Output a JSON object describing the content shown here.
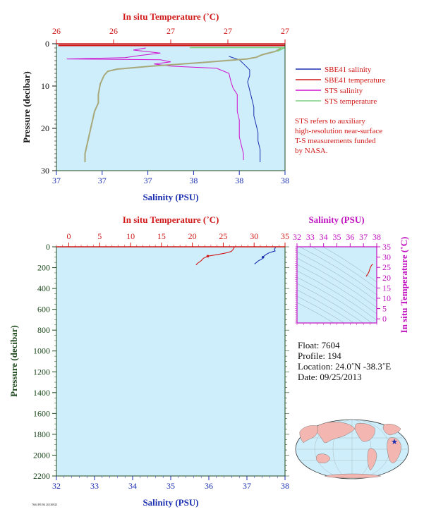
{
  "colors": {
    "plot_bg": "#cdeefa",
    "sbe41_salinity": "#1a2fb0",
    "sbe41_temperature": "#d01818",
    "sts_salinity": "#d010d0",
    "sts_temperature": "#7cd07c",
    "sts_temperature_trace": "#a8a87a",
    "temperature_axis": "#d01818",
    "salinity_axis": "#1a2fb0",
    "pressure_axis": "#1e4a1e",
    "ts_axis": "#c010c0"
  },
  "legend": {
    "items": [
      {
        "label": "SBE41 salinity",
        "color": "#1a2fb0"
      },
      {
        "label": "SBE41 temperature",
        "color": "#d01818"
      },
      {
        "label": "STS salinity",
        "color": "#d010d0"
      },
      {
        "label": "STS temperature",
        "color": "#7cd07c"
      }
    ],
    "note": [
      "STS refers to auxiliary",
      "high-resolution near-surface",
      "T-S measurements funded",
      "by NASA."
    ]
  },
  "float_info": {
    "float": "Float:  7604",
    "profile": "Profile:  194",
    "location": "Location:  24.0˚N  -38.3˚E",
    "date": "Date:  09/25/2013"
  },
  "footer_tiny": "7604 P0194 20130925",
  "chart_data": [
    {
      "type": "line",
      "name": "near-surface profile",
      "top_axis": {
        "label": "In situ Temperature (˚C)",
        "ticks": [
          "26",
          "26",
          "27",
          "27",
          "27"
        ],
        "range": [
          25.9,
          27.1
        ]
      },
      "bottom_axis": {
        "label": "Salinity (PSU)",
        "ticks": [
          "37",
          "37",
          "37",
          "38",
          "38",
          "38"
        ],
        "range": [
          36.95,
          38.05
        ]
      },
      "y_axis": {
        "label": "Pressure (decibar)",
        "ticks": [
          "0",
          "10",
          "20",
          "30"
        ],
        "range": [
          0,
          30
        ],
        "inverted": true
      },
      "series": [
        {
          "name": "SBE41 salinity",
          "axis": "bottom",
          "points": [
            [
              37.78,
              3
            ],
            [
              37.83,
              3.8
            ],
            [
              37.86,
              5.2
            ],
            [
              37.88,
              6.2
            ],
            [
              37.88,
              7.5
            ],
            [
              37.87,
              9
            ],
            [
              37.88,
              11
            ],
            [
              37.89,
              13
            ],
            [
              37.9,
              15
            ],
            [
              37.9,
              17
            ],
            [
              37.91,
              19
            ],
            [
              37.92,
              21
            ],
            [
              37.92,
              23
            ],
            [
              37.93,
              25
            ],
            [
              37.93,
              27
            ],
            [
              37.93,
              28
            ]
          ]
        },
        {
          "name": "STS salinity",
          "axis": "bottom",
          "points": [
            [
              37.38,
              1
            ],
            [
              37.32,
              1.5
            ],
            [
              37.45,
              2.2
            ],
            [
              37.35,
              2.8
            ],
            [
              37.28,
              3.3
            ],
            [
              37.0,
              3.6
            ],
            [
              37.45,
              3.8
            ],
            [
              37.5,
              4.3
            ],
            [
              37.42,
              4.8
            ],
            [
              37.5,
              5.3
            ],
            [
              37.72,
              5.8
            ],
            [
              37.78,
              7
            ],
            [
              37.79,
              9
            ],
            [
              37.8,
              10.5
            ],
            [
              37.82,
              12
            ],
            [
              37.82,
              14
            ],
            [
              37.82,
              16
            ],
            [
              37.83,
              18
            ],
            [
              37.83,
              20
            ],
            [
              37.83,
              22
            ],
            [
              37.84,
              24
            ],
            [
              37.85,
              26
            ],
            [
              37.85,
              27.5
            ]
          ]
        },
        {
          "name": "STS temperature",
          "axis": "top",
          "points": [
            [
              27.08,
              1
            ],
            [
              27.05,
              1.8
            ],
            [
              26.98,
              2.6
            ],
            [
              26.95,
              3.2
            ],
            [
              26.9,
              3.6
            ],
            [
              26.65,
              4.5
            ],
            [
              26.4,
              5.3
            ],
            [
              26.22,
              6.0
            ],
            [
              26.17,
              6.5
            ],
            [
              26.15,
              7.5
            ],
            [
              26.13,
              9.5
            ],
            [
              26.12,
              12
            ],
            [
              26.12,
              14
            ],
            [
              26.1,
              16
            ],
            [
              26.09,
              18
            ],
            [
              26.08,
              20
            ],
            [
              26.07,
              22
            ],
            [
              26.06,
              24
            ],
            [
              26.05,
              26
            ],
            [
              26.05,
              28
            ]
          ]
        },
        {
          "name": "SBE41 temperature",
          "axis": "top",
          "points": [
            [
              25.91,
              0.4
            ],
            [
              27.1,
              0.4
            ]
          ]
        }
      ]
    },
    {
      "type": "line",
      "name": "full profile",
      "top_axis": {
        "label": "In situ Temperature (˚C)",
        "ticks": [
          "0",
          "5",
          "10",
          "15",
          "20",
          "25",
          "30",
          "35"
        ],
        "range": [
          -2,
          35
        ]
      },
      "bottom_axis": {
        "label": "Salinity (PSU)",
        "ticks": [
          "32",
          "33",
          "34",
          "35",
          "36",
          "37",
          "38"
        ],
        "range": [
          32,
          38
        ]
      },
      "y_axis": {
        "label": "Pressure (decibar)",
        "ticks": [
          "0",
          "200",
          "400",
          "600",
          "800",
          "1000",
          "1200",
          "1400",
          "1600",
          "1800",
          "2000",
          "2200"
        ],
        "range": [
          0,
          2200
        ],
        "inverted": true
      },
      "series": [
        {
          "name": "SBE41 temperature",
          "axis": "top",
          "points": [
            [
              26.8,
              5
            ],
            [
              26.6,
              25
            ],
            [
              26.3,
              45
            ],
            [
              25.2,
              62
            ],
            [
              24.0,
              75
            ],
            [
              22.5,
              90
            ],
            [
              21.8,
              110
            ],
            [
              21.4,
              135
            ],
            [
              20.8,
              160
            ],
            [
              20.6,
              175
            ]
          ]
        },
        {
          "name": "SBE41 salinity",
          "axis": "bottom",
          "points": [
            [
              37.75,
              5
            ],
            [
              37.72,
              25
            ],
            [
              37.74,
              40
            ],
            [
              37.6,
              55
            ],
            [
              37.52,
              70
            ],
            [
              37.46,
              85
            ],
            [
              37.42,
              100
            ],
            [
              37.4,
              115
            ],
            [
              37.3,
              135
            ],
            [
              37.25,
              150
            ],
            [
              37.2,
              165
            ]
          ]
        }
      ]
    },
    {
      "type": "scatter",
      "name": "T-S diagram",
      "top_axis": {
        "label": "Salinity (PSU)",
        "ticks": [
          "32",
          "33",
          "34",
          "35",
          "36",
          "37",
          "38"
        ],
        "range": [
          32,
          38
        ]
      },
      "right_axis": {
        "label": "In situ Temperature (˚C)",
        "ticks": [
          "0",
          "5",
          "10",
          "15",
          "20",
          "25",
          "30",
          "35"
        ],
        "range": [
          -2,
          35
        ]
      },
      "series": [
        {
          "name": "SBE41 T-S",
          "points": [
            [
              37.2,
              20.6
            ],
            [
              37.3,
              21.5
            ],
            [
              37.4,
              22.6
            ],
            [
              37.46,
              23.8
            ],
            [
              37.52,
              25.0
            ],
            [
              37.6,
              26.0
            ],
            [
              37.72,
              26.6
            ]
          ]
        }
      ]
    }
  ],
  "world_map": {
    "marker": "★"
  }
}
